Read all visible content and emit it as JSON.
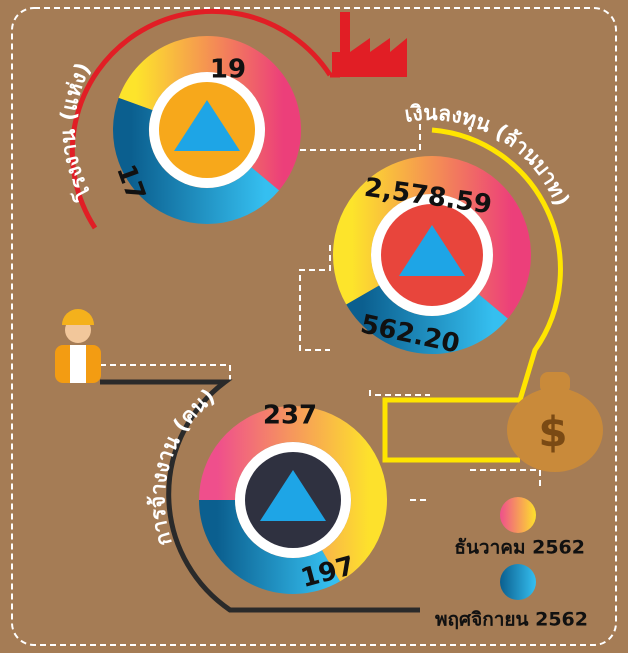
{
  "panels": [
    {
      "label": "โรงงาน (แห่ง)",
      "current": "19",
      "previous": "17"
    },
    {
      "label": "เงินลงทุน (ล้านบาท)",
      "current": "2,578.59",
      "previous": "562.20"
    },
    {
      "label": "การจ้างงาน (คน)",
      "current": "237",
      "previous": "197"
    }
  ],
  "legend": [
    "ธันวาคม 2562",
    "พฤศจิกายน 2562"
  ]
}
